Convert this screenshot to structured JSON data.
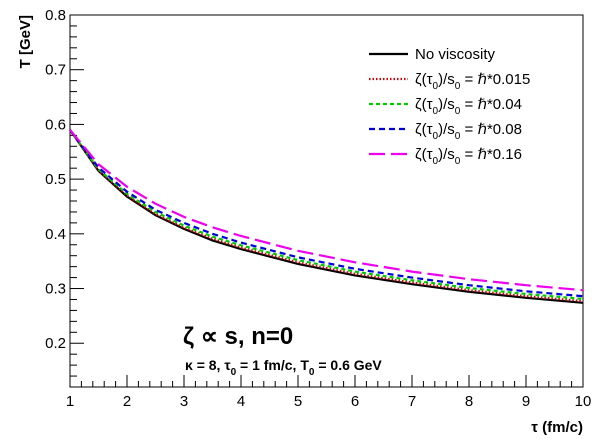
{
  "chart_data": {
    "type": "line",
    "xlabel": "τ (fm/c)",
    "ylabel": "T [GeV]",
    "xlim": [
      1,
      10
    ],
    "ylim": [
      0.12,
      0.8
    ],
    "x_ticks": [
      1,
      2,
      3,
      4,
      5,
      6,
      7,
      8,
      9,
      10
    ],
    "y_ticks": [
      0.2,
      0.3,
      0.4,
      0.5,
      0.6,
      0.7,
      0.8
    ],
    "grid": false,
    "legend_position": "top-right",
    "x": [
      1,
      1.5,
      2,
      2.5,
      3,
      3.5,
      4,
      5,
      6,
      7,
      8,
      9,
      10
    ],
    "series": [
      {
        "name": "No viscosity",
        "color": "#000000",
        "dash": "solid",
        "values": [
          0.59,
          0.515,
          0.468,
          0.434,
          0.409,
          0.388,
          0.372,
          0.345,
          0.324,
          0.308,
          0.294,
          0.283,
          0.274
        ]
      },
      {
        "name": "ζ(τ0)/s0 = ℏ*0.015",
        "color": "#cc0000",
        "dash": "dotted",
        "values": [
          0.59,
          0.516,
          0.47,
          0.436,
          0.411,
          0.391,
          0.375,
          0.348,
          0.327,
          0.311,
          0.297,
          0.286,
          0.277
        ]
      },
      {
        "name": "ζ(τ0)/s0 = ℏ*0.04",
        "color": "#00cc00",
        "dash": "dashed-short",
        "values": [
          0.59,
          0.518,
          0.473,
          0.44,
          0.415,
          0.395,
          0.379,
          0.352,
          0.331,
          0.315,
          0.301,
          0.29,
          0.281
        ]
      },
      {
        "name": "ζ(τ0)/s0 = ℏ*0.08",
        "color": "#0000dd",
        "dash": "dashed",
        "values": [
          0.59,
          0.521,
          0.477,
          0.444,
          0.42,
          0.4,
          0.384,
          0.357,
          0.336,
          0.32,
          0.306,
          0.295,
          0.286
        ]
      },
      {
        "name": "ζ(τ0)/s0 = ℏ*0.16",
        "color": "#ee00ee",
        "dash": "long-dash",
        "values": [
          0.59,
          0.527,
          0.486,
          0.455,
          0.431,
          0.412,
          0.396,
          0.369,
          0.348,
          0.331,
          0.317,
          0.306,
          0.297
        ]
      }
    ],
    "annotations": {
      "main": "ζ ∝ s, n=0",
      "sub": "κ = 8, τ0 = 1 fm/c, T0 = 0.6 GeV"
    }
  }
}
